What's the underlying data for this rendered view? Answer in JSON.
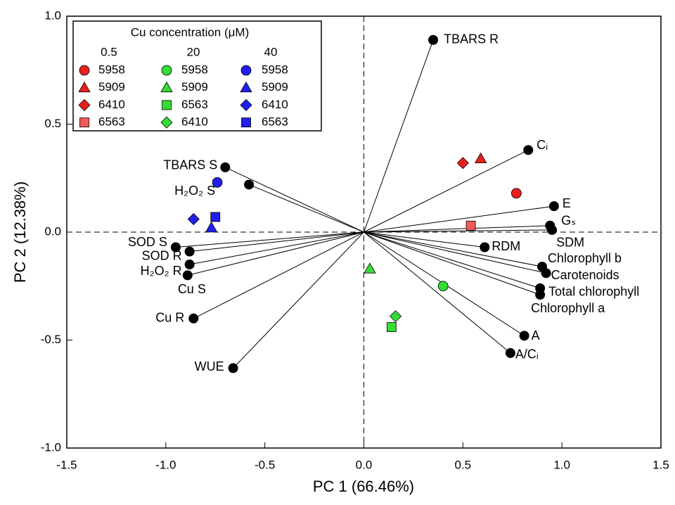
{
  "chart_data": {
    "type": "biplot",
    "xlabel": "PC 1 (66.46%)",
    "ylabel": "PC 2 (12.38%)",
    "xlim": [
      -1.5,
      1.5
    ],
    "ylim": [
      -1.0,
      1.0
    ],
    "xticks": [
      {
        "value": -1.5,
        "label": "-1.5"
      },
      {
        "value": -1.0,
        "label": "-1.0"
      },
      {
        "value": -0.5,
        "label": "-0.5"
      },
      {
        "value": 0,
        "label": "0.0"
      },
      0.5,
      {
        "value": 1.0,
        "label": "1.0"
      },
      1.5
    ],
    "yticks": [
      {
        "value": -1.0,
        "label": "-1.0"
      },
      -0.5,
      {
        "value": 0,
        "label": "0.0"
      },
      0.5,
      {
        "value": 1.0,
        "label": "1.0"
      }
    ],
    "zero_lines": true,
    "legend_title": "Cu concentration (μM)",
    "legend_position": "upper left",
    "loadings": [
      {
        "name": "TBARS R",
        "x": 0.35,
        "y": 0.89
      },
      {
        "name": "Cᵢ",
        "x": 0.83,
        "y": 0.38
      },
      {
        "name": "E",
        "x": 0.96,
        "y": 0.12
      },
      {
        "name": "Gₛ",
        "x": 0.94,
        "y": 0.03
      },
      {
        "name": "SDM",
        "x": 0.95,
        "y": 0.01
      },
      {
        "name": "RDM",
        "x": 0.61,
        "y": -0.07
      },
      {
        "name": "Chlorophyll b",
        "x": 0.9,
        "y": -0.16
      },
      {
        "name": "Carotenoids",
        "x": 0.92,
        "y": -0.19
      },
      {
        "name": "Total chlorophyll",
        "x": 0.89,
        "y": -0.26
      },
      {
        "name": "Chlorophyll a",
        "x": 0.89,
        "y": -0.29
      },
      {
        "name": "A",
        "x": 0.81,
        "y": -0.48
      },
      {
        "name": "A/Cᵢ",
        "x": 0.74,
        "y": -0.56
      },
      {
        "name": "TBARS S",
        "x": -0.7,
        "y": 0.3
      },
      {
        "name": "H₂O₂ S",
        "x": -0.58,
        "y": 0.22
      },
      {
        "name": "SOD S",
        "x": -0.95,
        "y": -0.07
      },
      {
        "name": "SOD R",
        "x": -0.88,
        "y": -0.09
      },
      {
        "name": "H₂O₂ R",
        "x": -0.88,
        "y": -0.15
      },
      {
        "name": "Cu S",
        "x": -0.89,
        "y": -0.2
      },
      {
        "name": "Cu R",
        "x": -0.86,
        "y": -0.4
      },
      {
        "name": "WUE",
        "x": -0.66,
        "y": -0.63
      }
    ],
    "groups": [
      {
        "name": "0.5",
        "color": "#e8201f",
        "points": [
          {
            "name": "5958",
            "marker": "circle",
            "x": 0.77,
            "y": 0.18
          },
          {
            "name": "5909",
            "marker": "triangle",
            "x": 0.59,
            "y": 0.34
          },
          {
            "name": "6410",
            "marker": "diamond",
            "x": 0.5,
            "y": 0.32
          },
          {
            "name": "6563",
            "marker": "square",
            "color": "#f05a5a",
            "x": 0.54,
            "y": 0.03
          }
        ]
      },
      {
        "name": "20",
        "color": "#33dd33",
        "points": [
          {
            "name": "5958",
            "marker": "circle",
            "x": 0.4,
            "y": -0.25
          },
          {
            "name": "5909",
            "marker": "triangle",
            "x": 0.03,
            "y": -0.17
          },
          {
            "name": "6563",
            "marker": "square",
            "x": 0.14,
            "y": -0.44
          },
          {
            "name": "6410",
            "marker": "diamond",
            "x": 0.16,
            "y": -0.39
          }
        ]
      },
      {
        "name": "40",
        "color": "#1f1fee",
        "points": [
          {
            "name": "5958",
            "marker": "circle",
            "x": -0.74,
            "y": 0.23
          },
          {
            "name": "5909",
            "marker": "triangle",
            "x": -0.77,
            "y": 0.02
          },
          {
            "name": "6410",
            "marker": "diamond",
            "x": -0.86,
            "y": 0.06
          },
          {
            "name": "6563",
            "marker": "square",
            "x": -0.75,
            "y": 0.07
          }
        ]
      }
    ]
  }
}
